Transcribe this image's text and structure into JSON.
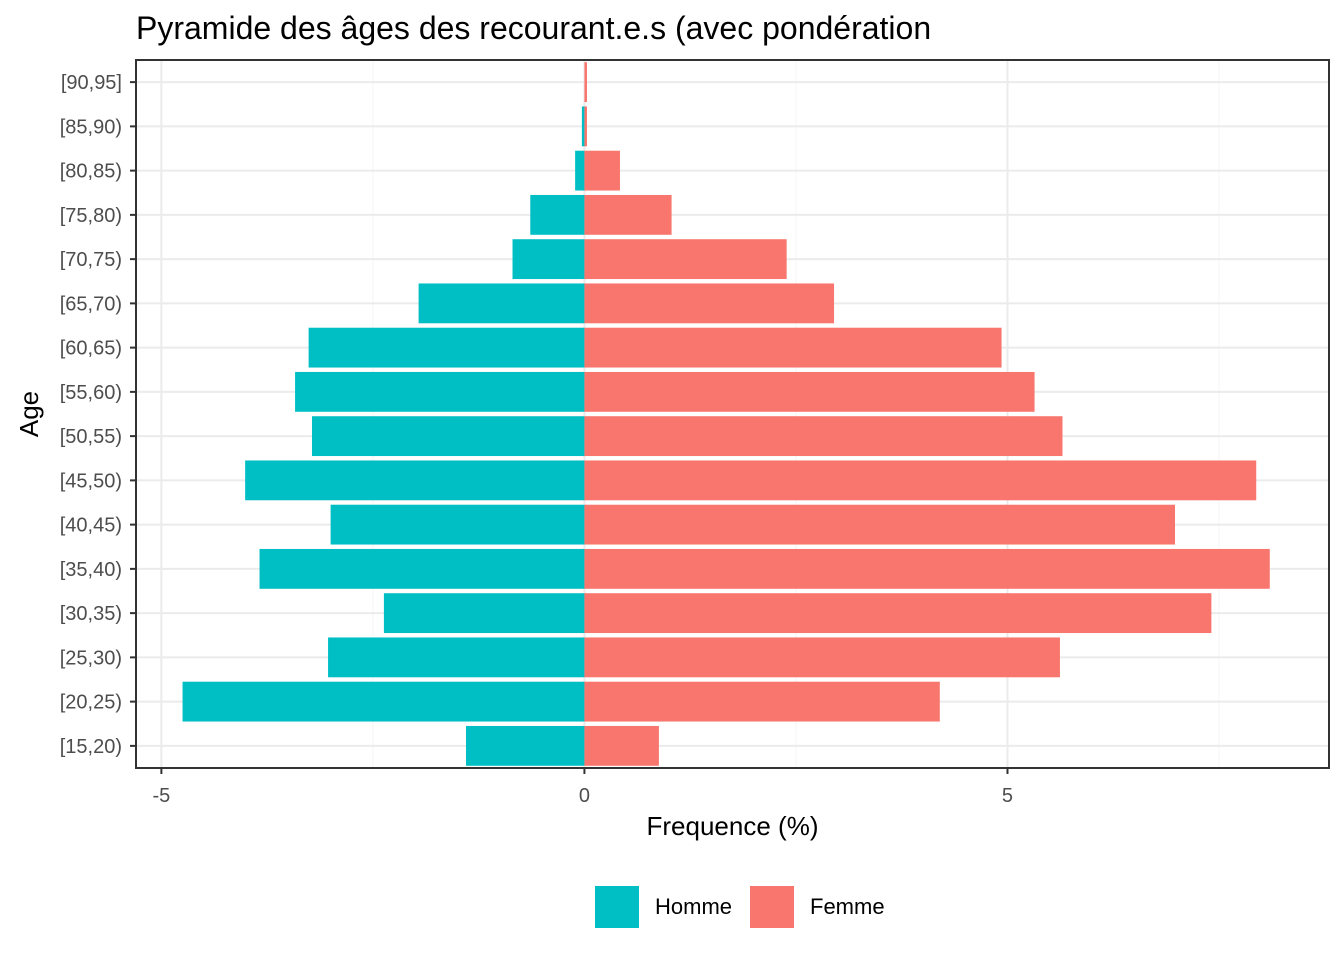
{
  "chart_data": {
    "type": "bar",
    "orientation": "horizontal",
    "title": "Pyramide des âges des recourant.e.s (avec pondération",
    "xlabel": "Frequence (%)",
    "ylabel": "Age",
    "xlim": [
      -5.3,
      8.8
    ],
    "xticks": [
      -5,
      0,
      5
    ],
    "xtick_labels": [
      "-5",
      "0",
      "5"
    ],
    "grid": true,
    "legend_position": "bottom",
    "categories": [
      "[15,20)",
      "[20,25)",
      "[25,30)",
      "[30,35)",
      "[35,40)",
      "[40,45)",
      "[45,50)",
      "[50,55)",
      "[55,60)",
      "[60,65)",
      "[65,70)",
      "[70,75)",
      "[75,80)",
      "[80,85)",
      "[85,90)",
      "[90,95]"
    ],
    "series": [
      {
        "name": "Homme",
        "color": "#00BFC4",
        "values": [
          -1.4,
          -4.75,
          -3.03,
          -2.37,
          -3.84,
          -3.0,
          -4.01,
          -3.22,
          -3.42,
          -3.26,
          -1.96,
          -0.85,
          -0.64,
          -0.11,
          -0.03,
          0
        ]
      },
      {
        "name": "Femme",
        "color": "#F8766D",
        "values": [
          0.88,
          4.2,
          5.62,
          7.41,
          8.1,
          6.98,
          7.94,
          5.65,
          5.32,
          4.93,
          2.95,
          2.39,
          1.03,
          0.42,
          0.03,
          0.03
        ]
      }
    ]
  },
  "colors": {
    "grid_major": "#EBEBEB",
    "grid_minor": "#F5F5F5",
    "axis_text": "#4D4D4D",
    "panel_border": "#333333"
  }
}
